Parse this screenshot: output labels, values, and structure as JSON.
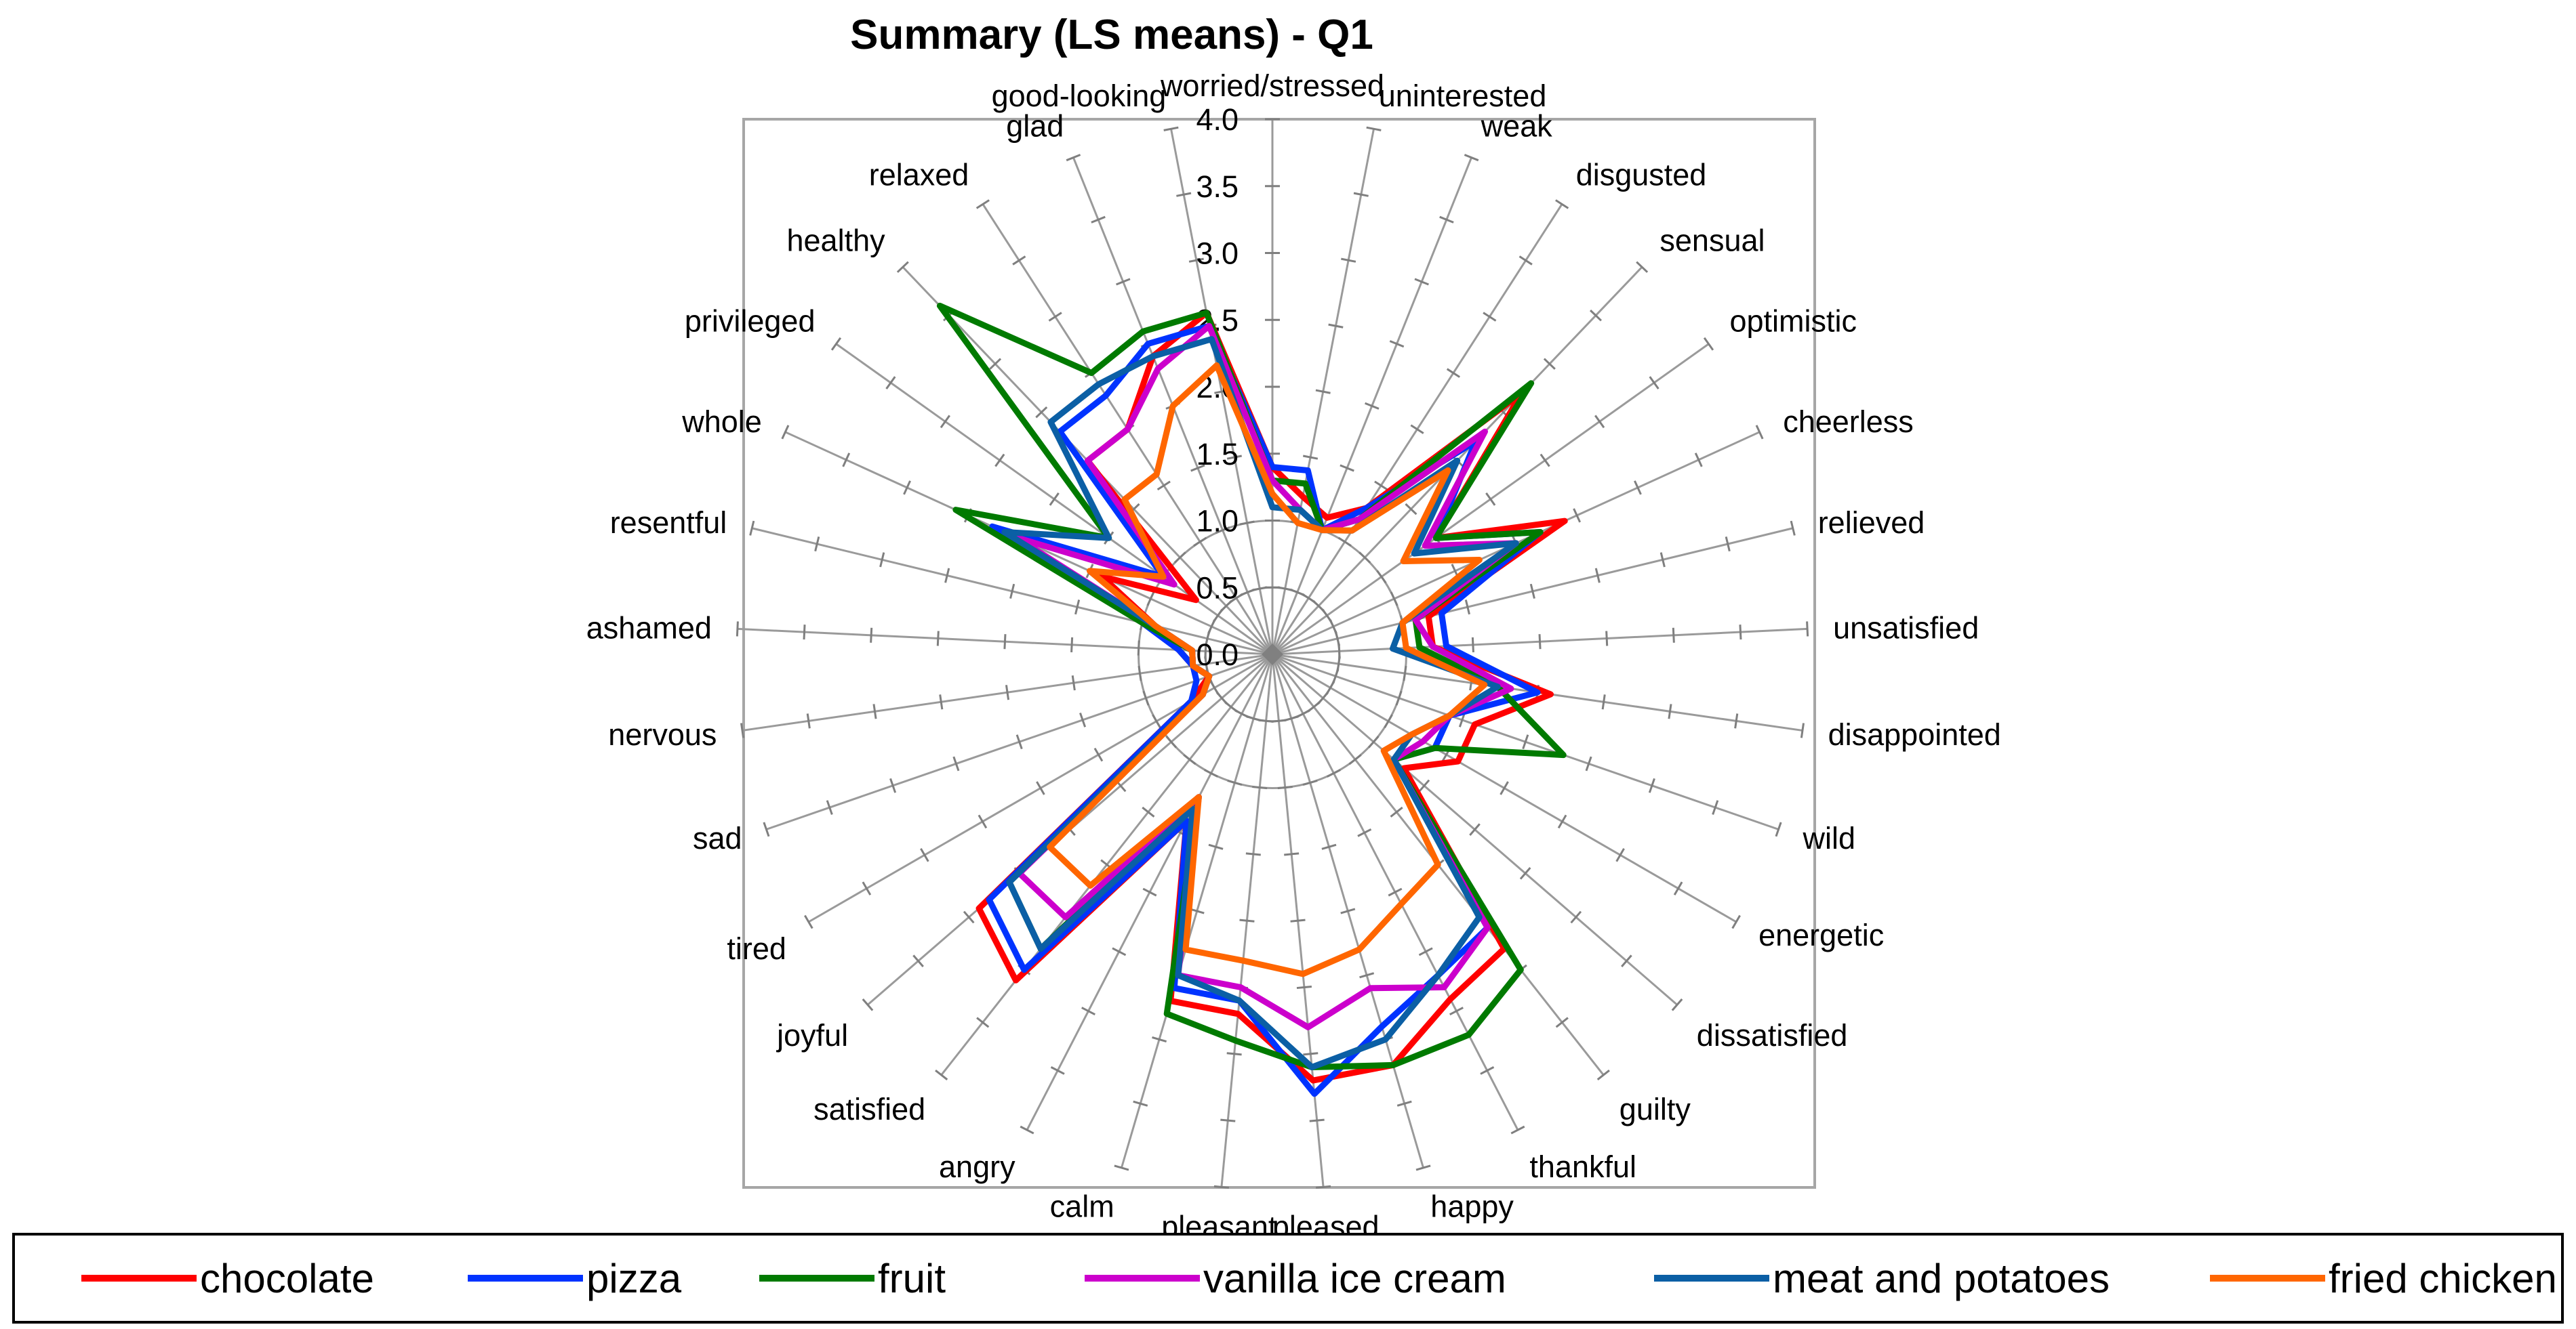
{
  "chart_data": {
    "type": "radar",
    "title": "Summary (LS means) - Q1",
    "rlim": [
      0,
      4
    ],
    "ticks": [
      "0.0",
      "0.5",
      "1.0",
      "1.5",
      "2.0",
      "2.5",
      "3.0",
      "3.5",
      "4.0"
    ],
    "categories": [
      "worried/stressed",
      "uninterested",
      "weak",
      "disgusted",
      "sensual",
      "optimistic",
      "cheerless",
      "relieved",
      "unsatisfied",
      "disappointed",
      "wild",
      "energetic",
      "dissatisfied",
      "guilty",
      "thankful",
      "happy",
      "pleased",
      "pleasant",
      "calm",
      "angry",
      "satisfied",
      "joyful",
      "tired",
      "sad",
      "nervous",
      "ashamed",
      "resentful",
      "whole",
      "privileged",
      "healthy",
      "relaxed",
      "glad",
      "good-looking"
    ],
    "grid": true,
    "legend_position": "bottom",
    "series": [
      {
        "name": "chocolate",
        "color": "#ff0000",
        "values": [
          1.4,
          1.2,
          1.1,
          1.3,
          2.7,
          1.5,
          2.4,
          1.2,
          1.2,
          2.1,
          1.6,
          1.6,
          1.3,
          2.8,
          2.9,
          3.2,
          3.2,
          2.7,
          2.7,
          1.4,
          3.1,
          2.9,
          0.7,
          0.5,
          0.6,
          0.7,
          0.9,
          1.4,
          0.7,
          2.0,
          2.0,
          2.4,
          2.6
        ]
      },
      {
        "name": "pizza",
        "color": "#0033ff",
        "values": [
          1.4,
          1.4,
          1.0,
          1.3,
          2.2,
          1.5,
          2.2,
          1.3,
          1.3,
          2.0,
          1.4,
          1.4,
          1.2,
          2.6,
          2.7,
          2.9,
          3.3,
          2.6,
          2.6,
          1.4,
          3.0,
          2.8,
          0.7,
          0.6,
          0.6,
          0.7,
          1.0,
          2.3,
          1.0,
          2.3,
          2.3,
          2.5,
          2.5
        ]
      },
      {
        "name": "fruit",
        "color": "#007a00",
        "values": [
          1.3,
          1.3,
          1.0,
          1.2,
          2.8,
          1.5,
          2.2,
          1.1,
          1.1,
          1.7,
          2.3,
          1.4,
          1.2,
          3.0,
          3.2,
          3.2,
          3.1,
          2.9,
          2.8,
          1.2,
          2.8,
          2.6,
          0.6,
          0.5,
          0.6,
          0.6,
          1.0,
          2.6,
          1.5,
          3.6,
          2.5,
          2.6,
          2.6
        ]
      },
      {
        "name": "vanilla ice cream",
        "color": "#cc00cc",
        "values": [
          1.3,
          1.1,
          1.0,
          1.2,
          2.3,
          1.4,
          2.0,
          1.1,
          1.2,
          1.8,
          1.4,
          1.3,
          1.2,
          2.6,
          2.8,
          2.6,
          2.8,
          2.5,
          2.5,
          1.2,
          2.5,
          2.5,
          0.6,
          0.5,
          0.6,
          0.6,
          0.9,
          2.1,
          0.9,
          2.0,
          2.0,
          2.3,
          2.5
        ]
      },
      {
        "name": "meat and potatoes",
        "color": "#0b5fa5",
        "values": [
          1.1,
          1.1,
          1.0,
          1.1,
          2.0,
          1.3,
          2.0,
          1.0,
          0.9,
          1.7,
          1.4,
          1.2,
          1.2,
          2.5,
          2.7,
          3.0,
          3.1,
          2.6,
          2.5,
          1.3,
          2.8,
          2.6,
          0.6,
          0.5,
          0.6,
          0.6,
          0.9,
          2.2,
          1.5,
          2.4,
          2.4,
          2.4,
          2.4
        ]
      },
      {
        "name": "fried chicken",
        "color": "#ff6600",
        "values": [
          1.2,
          1.0,
          1.0,
          1.1,
          1.9,
          1.2,
          1.7,
          1.0,
          1.0,
          1.6,
          1.4,
          1.2,
          1.1,
          2.0,
          2.1,
          2.3,
          2.4,
          2.3,
          2.3,
          1.2,
          2.2,
          2.2,
          0.6,
          0.5,
          0.6,
          0.6,
          0.9,
          1.5,
          1.0,
          1.6,
          1.6,
          2.0,
          2.2
        ]
      }
    ]
  }
}
